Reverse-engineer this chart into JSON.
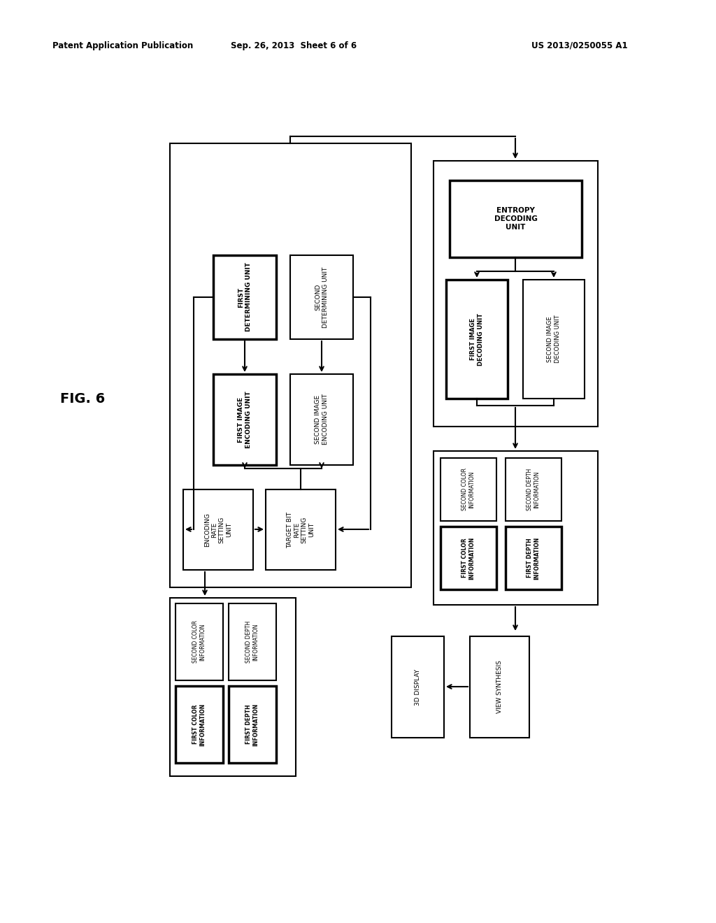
{
  "bg_color": "#ffffff",
  "header_left": "Patent Application Publication",
  "header_mid": "Sep. 26, 2013  Sheet 6 of 6",
  "header_right": "US 2013/0250055 A1",
  "fig_label": "FIG. 6"
}
